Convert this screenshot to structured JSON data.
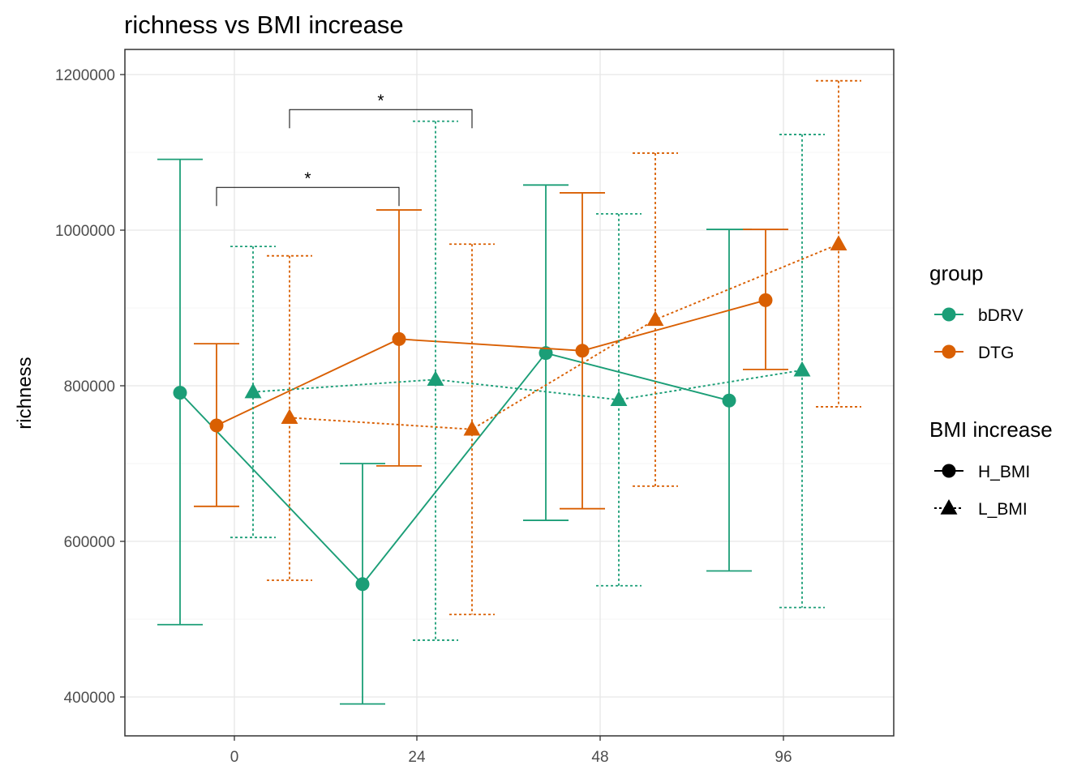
{
  "chart_data": {
    "type": "line",
    "title": "richness vs BMI increase",
    "xlabel": "",
    "ylabel": "richness",
    "categories": [
      "0",
      "24",
      "48",
      "96"
    ],
    "ylim": [
      350000,
      1250000
    ],
    "y_ticks": [
      400000,
      600000,
      800000,
      1000000,
      1200000
    ],
    "y_tick_labels": [
      "400000",
      "600000",
      "800000",
      "1000000",
      "1200000"
    ],
    "grid": true,
    "legend_placement": "right",
    "legend_group_title": "group",
    "legend_shape_title": "BMI increase",
    "groups": [
      {
        "name": "bDRV",
        "color": "#1B9E77"
      },
      {
        "name": "DTG",
        "color": "#D95F02"
      }
    ],
    "bmi_levels": [
      {
        "name": "H_BMI",
        "shape": "circle",
        "line": "solid"
      },
      {
        "name": "L_BMI",
        "shape": "triangle",
        "line": "dotted"
      }
    ],
    "series": [
      {
        "group": "bDRV",
        "bmi": "H_BMI",
        "values": [
          791000,
          545000,
          842000,
          781000
        ],
        "lower": [
          493000,
          391000,
          627000,
          562000
        ],
        "upper": [
          1091000,
          700000,
          1058000,
          1001000
        ]
      },
      {
        "group": "DTG",
        "bmi": "H_BMI",
        "values": [
          749000,
          860000,
          845000,
          910000
        ],
        "lower": [
          645000,
          697000,
          642000,
          821000
        ],
        "upper": [
          854000,
          1026000,
          1048000,
          1001000
        ]
      },
      {
        "group": "bDRV",
        "bmi": "L_BMI",
        "values": [
          792000,
          808000,
          782000,
          820000
        ],
        "lower": [
          605000,
          473000,
          543000,
          515000
        ],
        "upper": [
          979000,
          1140000,
          1021000,
          1123000
        ]
      },
      {
        "group": "DTG",
        "bmi": "L_BMI",
        "values": [
          759000,
          744000,
          885000,
          982000
        ],
        "lower": [
          550000,
          506000,
          671000,
          773000
        ],
        "upper": [
          967000,
          982000,
          1099000,
          1192000
        ]
      }
    ],
    "annotations": [
      {
        "text": "*",
        "bracket": {
          "from": {
            "category": "0",
            "group": "DTG",
            "bmi": "H_BMI"
          },
          "to": {
            "category": "24",
            "group": "DTG",
            "bmi": "H_BMI"
          },
          "level": 1055000
        }
      },
      {
        "text": "*",
        "bracket": {
          "from": {
            "category": "0",
            "group": "DTG",
            "bmi": "L_BMI"
          },
          "to": {
            "category": "24",
            "group": "DTG",
            "bmi": "L_BMI"
          },
          "level": 1155000
        }
      }
    ]
  }
}
